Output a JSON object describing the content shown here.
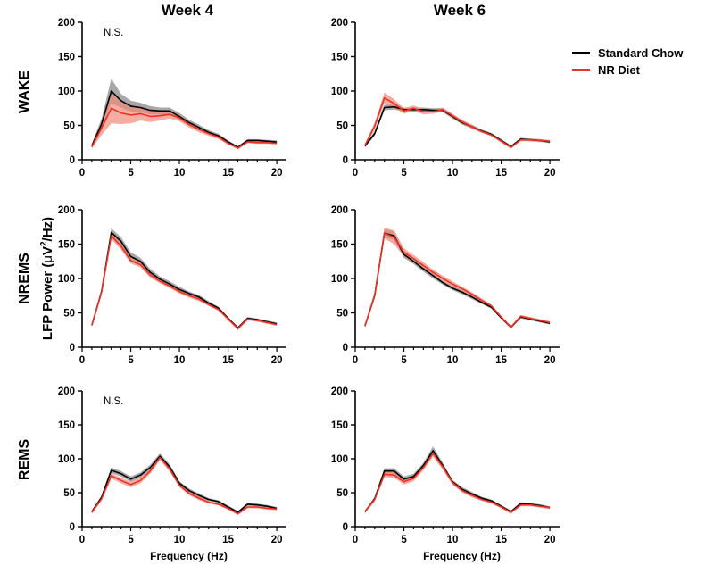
{
  "chart_data": [
    {
      "type": "line",
      "title": "Week 4",
      "row": "WAKE",
      "annotation": "N.S.",
      "xlabel": "",
      "ylim": [
        0,
        200
      ],
      "xlim": [
        0,
        21
      ],
      "x": [
        1,
        2,
        3,
        4,
        5,
        6,
        7,
        8,
        9,
        10,
        11,
        12,
        13,
        14,
        15,
        16,
        17,
        18,
        19,
        20
      ],
      "series": [
        {
          "name": "Standard Chow",
          "color": "#000000",
          "band": "#999999",
          "values": [
            20,
            52,
            100,
            86,
            78,
            76,
            72,
            71,
            71,
            63,
            54,
            47,
            40,
            35,
            26,
            18,
            28,
            28,
            27,
            26
          ],
          "err": [
            3,
            8,
            18,
            10,
            8,
            7,
            6,
            5,
            5,
            5,
            4,
            4,
            3,
            3,
            2,
            2,
            2,
            2,
            2,
            2
          ]
        },
        {
          "name": "NR Diet",
          "color": "#e8322a",
          "band": "#f08a78",
          "values": [
            19,
            46,
            75,
            68,
            65,
            67,
            63,
            64,
            66,
            61,
            51,
            44,
            38,
            33,
            24,
            17,
            26,
            25,
            25,
            24
          ],
          "err": [
            3,
            10,
            22,
            16,
            12,
            10,
            8,
            7,
            6,
            5,
            4,
            4,
            3,
            3,
            2,
            2,
            2,
            2,
            2,
            2
          ]
        }
      ]
    },
    {
      "type": "line",
      "title": "Week 6",
      "row": "WAKE",
      "annotation": "",
      "xlabel": "",
      "ylim": [
        0,
        200
      ],
      "xlim": [
        0,
        21
      ],
      "x": [
        1,
        2,
        3,
        4,
        5,
        6,
        7,
        8,
        9,
        10,
        11,
        12,
        13,
        14,
        15,
        16,
        17,
        18,
        19,
        20
      ],
      "series": [
        {
          "name": "Standard Chow",
          "color": "#000000",
          "band": "#999999",
          "values": [
            20,
            38,
            76,
            77,
            73,
            73,
            73,
            72,
            72,
            63,
            54,
            48,
            42,
            37,
            28,
            19,
            30,
            29,
            28,
            26
          ],
          "err": [
            2,
            3,
            4,
            4,
            3,
            3,
            3,
            3,
            3,
            3,
            3,
            3,
            2,
            2,
            2,
            2,
            2,
            2,
            2,
            2
          ]
        },
        {
          "name": "NR Diet",
          "color": "#e8322a",
          "band": "#f08a78",
          "values": [
            21,
            49,
            90,
            82,
            71,
            75,
            70,
            70,
            73,
            64,
            55,
            48,
            41,
            36,
            27,
            18,
            29,
            29,
            28,
            27
          ],
          "err": [
            2,
            5,
            8,
            6,
            4,
            4,
            4,
            3,
            3,
            3,
            3,
            3,
            2,
            2,
            2,
            2,
            2,
            2,
            2,
            2
          ]
        }
      ]
    },
    {
      "type": "line",
      "title": "",
      "row": "NREMS",
      "annotation": "",
      "xlabel": "",
      "ylim": [
        0,
        200
      ],
      "xlim": [
        0,
        21
      ],
      "x": [
        1,
        2,
        3,
        4,
        5,
        6,
        7,
        8,
        9,
        10,
        11,
        12,
        13,
        14,
        15,
        16,
        17,
        18,
        19,
        20
      ],
      "series": [
        {
          "name": "Standard Chow",
          "color": "#000000",
          "band": "#999999",
          "values": [
            32,
            81,
            167,
            154,
            132,
            125,
            109,
            99,
            92,
            84,
            78,
            73,
            64,
            57,
            42,
            28,
            42,
            40,
            37,
            34
          ],
          "err": [
            2,
            3,
            6,
            6,
            6,
            5,
            5,
            4,
            4,
            4,
            3,
            3,
            3,
            2,
            2,
            2,
            2,
            2,
            2,
            2
          ]
        },
        {
          "name": "NR Diet",
          "color": "#e8322a",
          "band": "#f08a78",
          "values": [
            32,
            80,
            162,
            147,
            126,
            120,
            105,
            96,
            89,
            81,
            75,
            70,
            62,
            55,
            41,
            27,
            41,
            39,
            36,
            33
          ],
          "err": [
            2,
            3,
            5,
            5,
            4,
            4,
            4,
            3,
            3,
            3,
            3,
            3,
            2,
            2,
            2,
            2,
            2,
            2,
            2,
            2
          ]
        }
      ]
    },
    {
      "type": "line",
      "title": "",
      "row": "NREMS",
      "annotation": "",
      "xlabel": "",
      "ylim": [
        0,
        200
      ],
      "xlim": [
        0,
        21
      ],
      "x": [
        1,
        2,
        3,
        4,
        5,
        6,
        7,
        8,
        9,
        10,
        11,
        12,
        13,
        14,
        15,
        16,
        17,
        18,
        19,
        20
      ],
      "series": [
        {
          "name": "Standard Chow",
          "color": "#000000",
          "band": "#999999",
          "values": [
            31,
            75,
            166,
            162,
            135,
            125,
            114,
            104,
            94,
            86,
            80,
            73,
            65,
            58,
            43,
            29,
            44,
            41,
            38,
            35
          ],
          "err": [
            2,
            3,
            6,
            6,
            5,
            4,
            4,
            4,
            3,
            3,
            3,
            3,
            2,
            2,
            2,
            2,
            2,
            2,
            2,
            2
          ]
        },
        {
          "name": "NR Diet",
          "color": "#e8322a",
          "band": "#f08a78",
          "values": [
            31,
            76,
            166,
            160,
            138,
            129,
            119,
            109,
            100,
            92,
            85,
            77,
            68,
            60,
            44,
            29,
            45,
            42,
            39,
            36
          ],
          "err": [
            2,
            4,
            8,
            10,
            6,
            5,
            5,
            4,
            4,
            4,
            3,
            3,
            3,
            2,
            2,
            2,
            2,
            2,
            2,
            2
          ]
        }
      ]
    },
    {
      "type": "line",
      "title": "",
      "row": "REMS",
      "annotation": "N.S.",
      "xlabel": "Frequency (Hz)",
      "ylim": [
        0,
        200
      ],
      "xlim": [
        0,
        21
      ],
      "x": [
        1,
        2,
        3,
        4,
        5,
        6,
        7,
        8,
        9,
        10,
        11,
        12,
        13,
        14,
        15,
        16,
        17,
        18,
        19,
        20
      ],
      "series": [
        {
          "name": "Standard Chow",
          "color": "#000000",
          "band": "#999999",
          "values": [
            22,
            43,
            83,
            78,
            70,
            76,
            87,
            104,
            88,
            64,
            53,
            46,
            40,
            37,
            29,
            21,
            33,
            32,
            30,
            27
          ],
          "err": [
            2,
            3,
            4,
            4,
            4,
            4,
            4,
            4,
            4,
            3,
            3,
            3,
            2,
            2,
            2,
            2,
            2,
            2,
            2,
            2
          ]
        },
        {
          "name": "NR Diet",
          "color": "#e8322a",
          "band": "#f08a78",
          "values": [
            21,
            41,
            75,
            68,
            62,
            68,
            82,
            102,
            85,
            61,
            49,
            42,
            36,
            33,
            27,
            19,
            29,
            29,
            27,
            26
          ],
          "err": [
            2,
            3,
            4,
            4,
            4,
            4,
            4,
            4,
            4,
            3,
            3,
            3,
            2,
            2,
            2,
            2,
            2,
            2,
            2,
            2
          ]
        }
      ]
    },
    {
      "type": "line",
      "title": "",
      "row": "REMS",
      "annotation": "",
      "xlabel": "Frequency (Hz)",
      "ylim": [
        0,
        200
      ],
      "xlim": [
        0,
        21
      ],
      "x": [
        1,
        2,
        3,
        4,
        5,
        6,
        7,
        8,
        9,
        10,
        11,
        12,
        13,
        14,
        15,
        16,
        17,
        18,
        19,
        20
      ],
      "series": [
        {
          "name": "Standard Chow",
          "color": "#000000",
          "band": "#999999",
          "values": [
            22,
            41,
            82,
            82,
            70,
            74,
            90,
            112,
            90,
            66,
            55,
            48,
            42,
            38,
            30,
            22,
            34,
            33,
            31,
            28
          ],
          "err": [
            2,
            3,
            4,
            4,
            4,
            4,
            4,
            6,
            4,
            3,
            3,
            3,
            2,
            2,
            2,
            2,
            2,
            2,
            2,
            2
          ]
        },
        {
          "name": "NR Diet",
          "color": "#e8322a",
          "band": "#f08a78",
          "values": [
            22,
            40,
            77,
            76,
            66,
            71,
            87,
            108,
            88,
            65,
            53,
            46,
            40,
            36,
            29,
            21,
            32,
            32,
            30,
            28
          ],
          "err": [
            2,
            3,
            4,
            4,
            4,
            4,
            4,
            5,
            4,
            3,
            3,
            3,
            2,
            2,
            2,
            2,
            2,
            2,
            2,
            2
          ]
        }
      ]
    }
  ],
  "figure": {
    "shared_ylabel_prefix": "LFP Power (",
    "shared_ylabel_mu": "μ",
    "shared_ylabel_unit": "V",
    "shared_ylabel_exp": "2",
    "shared_ylabel_suffix": "/Hz)",
    "row_labels": [
      "WAKE",
      "NREMS",
      "REMS"
    ],
    "column_titles": [
      "Week 4",
      "Week 6"
    ],
    "y_ticks": [
      "0",
      "50",
      "100",
      "150",
      "200"
    ],
    "x_ticks": [
      "0",
      "5",
      "10",
      "15",
      "20"
    ]
  },
  "legend": {
    "items": [
      {
        "label": "Standard Chow",
        "color": "#000000"
      },
      {
        "label": "NR Diet",
        "color": "#e8322a"
      }
    ]
  }
}
